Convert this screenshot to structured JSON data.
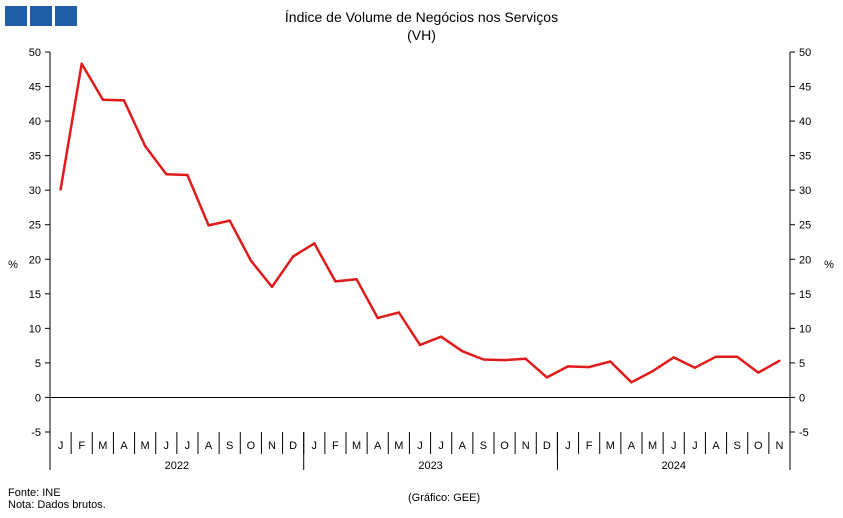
{
  "header": {
    "logo_colors": [
      "#1f5fa8",
      "#1f5fa8",
      "#1f5fa8"
    ]
  },
  "chart_data": {
    "type": "line",
    "title": "Índice de Volume de Negócios nos Serviços",
    "subtitle": "(VH)",
    "ylabel_left": "%",
    "ylabel_right": "%",
    "ylim": [
      -5,
      50
    ],
    "yticks": [
      50,
      45,
      40,
      35,
      30,
      25,
      20,
      15,
      10,
      5,
      0,
      -5
    ],
    "grid": false,
    "line_color": "#e01b1b",
    "x": [
      "J",
      "F",
      "M",
      "A",
      "M",
      "J",
      "J",
      "A",
      "S",
      "O",
      "N",
      "D",
      "J",
      "F",
      "M",
      "A",
      "M",
      "J",
      "J",
      "A",
      "S",
      "O",
      "N",
      "D",
      "J",
      "F",
      "M",
      "A",
      "M",
      "J",
      "J",
      "A",
      "S",
      "O",
      "N"
    ],
    "years": [
      {
        "label": "2022",
        "months": 12
      },
      {
        "label": "2023",
        "months": 12
      },
      {
        "label": "2024",
        "months": 11
      }
    ],
    "series": [
      {
        "values": [
          30.1,
          48.3,
          43.1,
          43.0,
          36.4,
          32.3,
          32.2,
          24.9,
          25.6,
          19.8,
          16.0,
          20.4,
          22.3,
          16.8,
          17.1,
          11.5,
          12.3,
          7.6,
          8.8,
          6.7,
          5.5,
          5.4,
          5.6,
          2.9,
          4.5,
          4.4,
          5.2,
          2.2,
          3.8,
          5.8,
          4.3,
          5.9,
          5.9,
          3.6,
          5.3
        ]
      }
    ]
  },
  "footer": {
    "source": "Fonte: INE",
    "note": "Nota: Dados brutos.",
    "credit": "(Gráfico: GEE)"
  }
}
